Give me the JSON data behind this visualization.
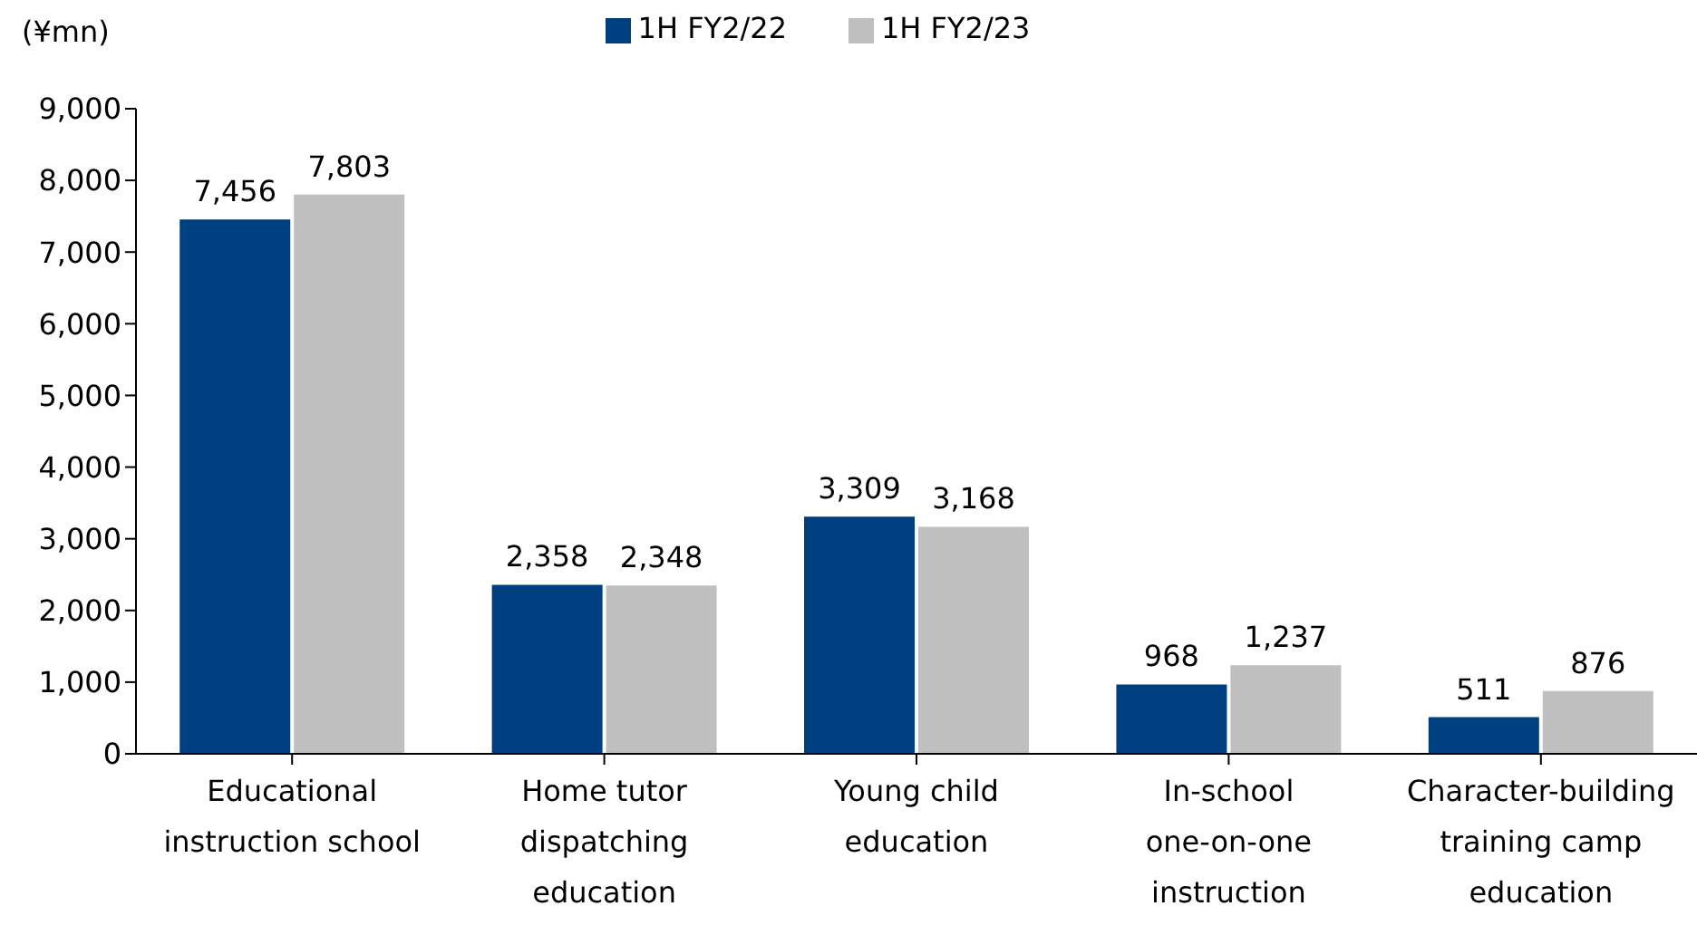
{
  "chart_data": {
    "type": "bar",
    "ylabel": "(¥mn)",
    "categories": [
      "Educational\ninstruction school",
      "Home tutor\ndispatching\neducation",
      "Young child\neducation",
      "In-school\none-on-one\ninstruction",
      "Character-building\ntraining camp\neducation"
    ],
    "series": [
      {
        "name": "1H FY2/22",
        "color": "#003f7f",
        "values": [
          7456,
          2358,
          3309,
          968,
          511
        ],
        "value_labels": [
          "7,456",
          "2,358",
          "3,309",
          "968",
          "511"
        ]
      },
      {
        "name": "1H FY2/23",
        "color": "#bfbfbf",
        "values": [
          7803,
          2348,
          3168,
          1237,
          876
        ],
        "value_labels": [
          "7,803",
          "2,348",
          "3,168",
          "1,237",
          "876"
        ]
      }
    ],
    "ylim": [
      0,
      9000
    ],
    "yticks": [
      0,
      {
        "value": 1000,
        "label": "1,000"
      },
      {
        "value": 2000,
        "label": "2,000"
      },
      {
        "value": 3000,
        "label": "3,000"
      },
      {
        "value": 4000,
        "label": "4,000"
      },
      {
        "value": 5000,
        "label": "5,000"
      },
      {
        "value": 6000,
        "label": "6,000"
      },
      {
        "value": 7000,
        "label": "7,000"
      },
      {
        "value": 8000,
        "label": "8,000"
      },
      {
        "value": 9000,
        "label": "9,000"
      }
    ],
    "grid": false,
    "legend": "top"
  }
}
